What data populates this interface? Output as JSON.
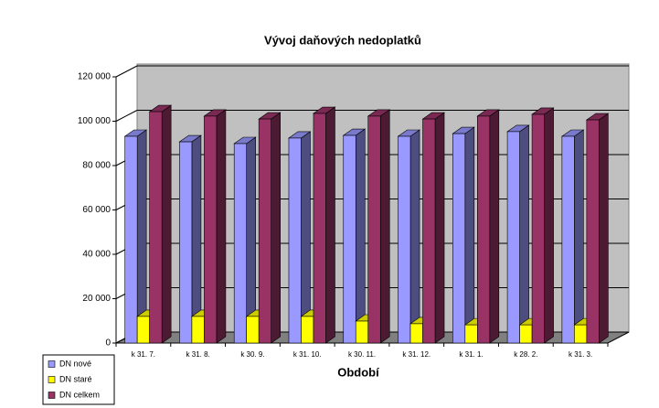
{
  "chart_data": {
    "type": "bar3d",
    "title": "Vývoj daňových nedoplatků",
    "x_label": "Období",
    "categories": [
      "k 31. 7.",
      "k 31. 8.",
      "k 30. 9.",
      "k 31. 10.",
      "k 30. 11.",
      "k 31. 12.",
      "k 31. 1.",
      "k 28. 2.",
      "k 31. 3."
    ],
    "series": [
      {
        "name": "DN nové",
        "color": "#9999ff",
        "values": [
          93200,
          90700,
          89900,
          92400,
          93600,
          93200,
          94400,
          95300,
          93200
        ]
      },
      {
        "name": "DN staré",
        "color": "#ffff00",
        "values": [
          12000,
          12000,
          12000,
          12000,
          9900,
          8700,
          8200,
          8200,
          8200
        ]
      },
      {
        "name": "DN celkem",
        "color": "#993366",
        "values": [
          104300,
          102300,
          101000,
          103500,
          102300,
          101000,
          102300,
          103100,
          100600
        ]
      }
    ],
    "ylim": [
      0,
      120000
    ],
    "yticks": [
      {
        "value": 120000,
        "label": "120 000"
      },
      {
        "value": 100000,
        "label": "100 000"
      },
      {
        "value": 80000,
        "label": "80 000"
      },
      {
        "value": 60000,
        "label": "60 000"
      },
      {
        "value": 40000,
        "label": "40 000"
      },
      {
        "value": 20000,
        "label": "20 000"
      },
      0
    ],
    "grid": true,
    "legend": "bottom-left"
  }
}
